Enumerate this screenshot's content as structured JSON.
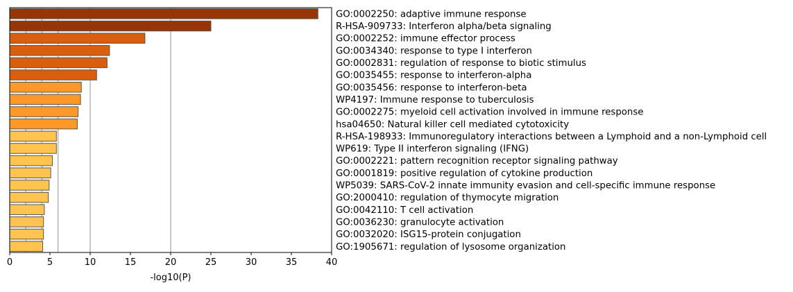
{
  "chart_data": {
    "type": "bar",
    "orientation": "horizontal",
    "xlabel": "-log10(P)",
    "xlim": [
      0,
      40
    ],
    "xticks": [
      0,
      5,
      10,
      15,
      20,
      25,
      30,
      35,
      40
    ],
    "vertical_reference_lines": [
      2,
      4,
      6,
      10,
      20
    ],
    "grid": false,
    "categories": [
      "GO:0002250: adaptive immune response",
      "R-HSA-909733: Interferon alpha/beta signaling",
      "GO:0002252: immune effector process",
      "GO:0034340: response to type I interferon",
      "GO:0002831: regulation of response to biotic stimulus",
      "GO:0035455: response to interferon-alpha",
      "GO:0035456: response to interferon-beta",
      "WP4197: Immune response to tuberculosis",
      "GO:0002275: myeloid cell activation involved in immune response",
      "hsa04650: Natural killer cell mediated cytotoxicity",
      "R-HSA-198933: Immunoregulatory interactions between a Lymphoid and a non-Lymphoid cell",
      "WP619: Type II interferon signaling (IFNG)",
      "GO:0002221: pattern recognition receptor signaling pathway",
      "GO:0001819: positive regulation of cytokine production",
      "WP5039: SARS-CoV-2 innate immunity evasion and cell-specific immune response",
      "GO:2000410: regulation of thymocyte migration",
      "GO:0042110: T cell activation",
      "GO:0036230: granulocyte activation",
      "GO:0032020: ISG15-protein conjugation",
      "GO:1905671: regulation of lysosome organization"
    ],
    "values": [
      38.3,
      25.0,
      16.8,
      12.4,
      12.1,
      10.8,
      8.9,
      8.8,
      8.5,
      8.4,
      5.8,
      5.8,
      5.3,
      5.1,
      4.9,
      4.8,
      4.3,
      4.2,
      4.2,
      4.1
    ],
    "bar_colors": [
      "#993404",
      "#993404",
      "#d95f0e",
      "#d95f0e",
      "#d95f0e",
      "#d95f0e",
      "#fe9929",
      "#fe9929",
      "#fe9929",
      "#fe9929",
      "#fec44f",
      "#fec44f",
      "#fec44f",
      "#fec44f",
      "#fec44f",
      "#fec44f",
      "#fec44f",
      "#fec44f",
      "#fec44f",
      "#fec44f"
    ],
    "bar_edge_color": "#555555",
    "reference_line_color": "#b0b0b0"
  }
}
